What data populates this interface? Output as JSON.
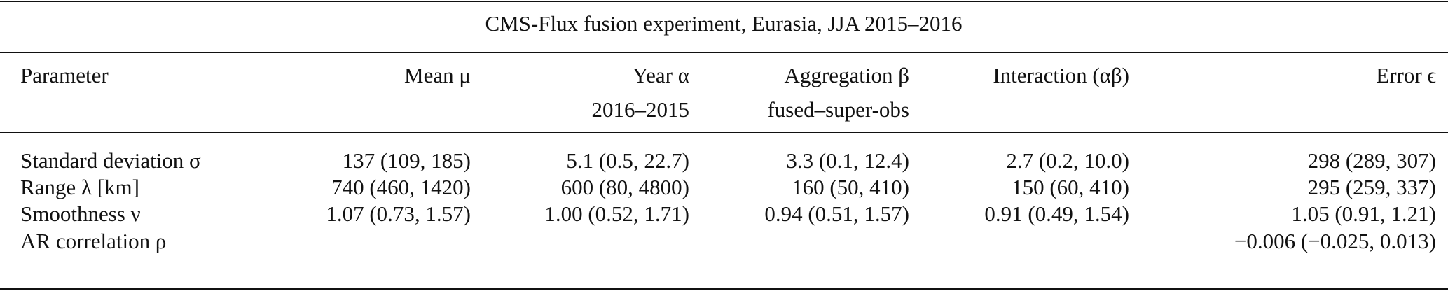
{
  "table": {
    "title": "CMS-Flux fusion experiment, Eurasia, JJA 2015–2016",
    "columns": [
      {
        "title": "Parameter"
      },
      {
        "title": "Mean μ"
      },
      {
        "title": "Year α",
        "subtitle": "2016–2015"
      },
      {
        "title": "Aggregation β",
        "subtitle": "fused–super-obs"
      },
      {
        "title": "Interaction (αβ)"
      },
      {
        "title": "Error ϵ"
      }
    ],
    "rows": [
      [
        "Standard deviation σ",
        "137 (109, 185)",
        "5.1 (0.5, 22.7)",
        "3.3 (0.1, 12.4)",
        "2.7 (0.2, 10.0)",
        "298 (289, 307)"
      ],
      [
        "Range λ [km]",
        "740 (460, 1420)",
        "600 (80, 4800)",
        "160 (50, 410)",
        "150 (60, 410)",
        "295 (259, 337)"
      ],
      [
        "Smoothness ν",
        "1.07 (0.73, 1.57)",
        "1.00 (0.52, 1.71)",
        "0.94 (0.51, 1.57)",
        "0.91 (0.49, 1.54)",
        "1.05 (0.91, 1.21)"
      ],
      [
        "AR correlation ρ",
        null,
        null,
        null,
        null,
        "−0.006 (−0.025, 0.013)"
      ]
    ]
  }
}
